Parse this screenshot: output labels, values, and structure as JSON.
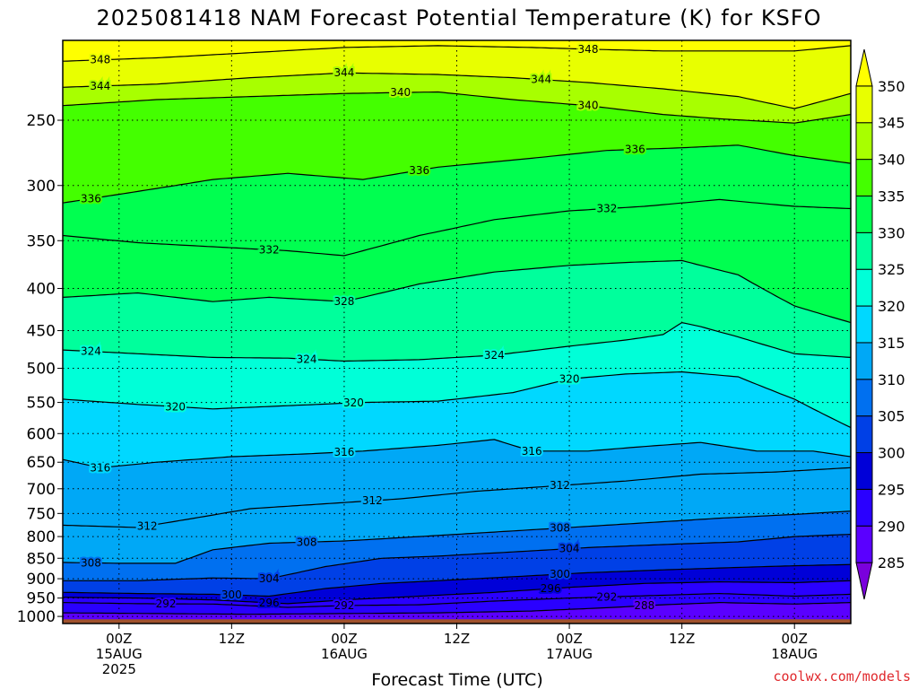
{
  "chart_data": {
    "type": "heatmap",
    "title": "2025081418 NAM Forecast Potential Temperature (K) for KSFO",
    "xlabel": "Forecast Time (UTC)",
    "ylabel": "",
    "y_scale": "log-pressure (inverted)",
    "ylim": [
      1020,
      200
    ],
    "y_ticks": [
      250,
      300,
      350,
      400,
      450,
      500,
      550,
      600,
      650,
      700,
      750,
      800,
      850,
      900,
      950,
      1000
    ],
    "x_ticks": [
      {
        "hour": 6,
        "lines": [
          "00Z",
          "15AUG",
          "2025"
        ]
      },
      {
        "hour": 18,
        "lines": [
          "12Z",
          "",
          ""
        ]
      },
      {
        "hour": 30,
        "lines": [
          "00Z",
          "16AUG",
          ""
        ]
      },
      {
        "hour": 42,
        "lines": [
          "12Z",
          "",
          ""
        ]
      },
      {
        "hour": 54,
        "lines": [
          "00Z",
          "17AUG",
          ""
        ]
      },
      {
        "hour": 66,
        "lines": [
          "12Z",
          "",
          ""
        ]
      },
      {
        "hour": 78,
        "lines": [
          "00Z",
          "18AUG",
          ""
        ]
      }
    ],
    "xlim": [
      0,
      84
    ],
    "grid": true,
    "colorbar": {
      "levels": [
        285,
        290,
        295,
        300,
        305,
        310,
        315,
        320,
        325,
        330,
        335,
        340,
        345,
        350
      ],
      "colors": [
        "#7a00dc",
        "#5a00ff",
        "#2a00ff",
        "#0000d8",
        "#0040e6",
        "#0070f0",
        "#00a8f6",
        "#00d8ff",
        "#00ffd8",
        "#00ff9c",
        "#00ff50",
        "#44ff00",
        "#a8ff00",
        "#e8ff00",
        "#ffff00"
      ],
      "position": "right"
    },
    "ground_color": "#a0522d",
    "isentropes": [
      {
        "theta": 348,
        "label_hours": [
          4,
          56
        ],
        "p": [
          [
            0,
            212
          ],
          [
            10,
            210
          ],
          [
            20,
            207
          ],
          [
            30,
            204
          ],
          [
            40,
            203
          ],
          [
            50,
            204
          ],
          [
            56,
            205
          ],
          [
            64,
            206
          ],
          [
            72,
            206
          ],
          [
            78,
            206
          ],
          [
            84,
            203
          ]
        ]
      },
      {
        "theta": 344,
        "label_hours": [
          4,
          30,
          51
        ],
        "p": [
          [
            0,
            228
          ],
          [
            10,
            226
          ],
          [
            20,
            222
          ],
          [
            30,
            219
          ],
          [
            40,
            220
          ],
          [
            48,
            222
          ],
          [
            56,
            225
          ],
          [
            64,
            229
          ],
          [
            72,
            234
          ],
          [
            78,
            242
          ],
          [
            84,
            232
          ]
        ]
      },
      {
        "theta": 340,
        "label_hours": [
          36,
          56
        ],
        "p": [
          [
            0,
            240
          ],
          [
            10,
            236
          ],
          [
            20,
            234
          ],
          [
            30,
            232
          ],
          [
            40,
            231
          ],
          [
            48,
            236
          ],
          [
            56,
            240
          ],
          [
            64,
            246
          ],
          [
            70,
            249
          ],
          [
            78,
            252
          ],
          [
            84,
            246
          ]
        ]
      },
      {
        "theta": 336,
        "label_hours": [
          3,
          38,
          61
        ],
        "p": [
          [
            0,
            315
          ],
          [
            8,
            305
          ],
          [
            16,
            295
          ],
          [
            24,
            290
          ],
          [
            32,
            295
          ],
          [
            40,
            285
          ],
          [
            50,
            278
          ],
          [
            58,
            272
          ],
          [
            66,
            270
          ],
          [
            72,
            268
          ],
          [
            78,
            276
          ],
          [
            84,
            282
          ]
        ]
      },
      {
        "theta": 332,
        "label_hours": [
          22,
          58
        ],
        "p": [
          [
            0,
            345
          ],
          [
            8,
            352
          ],
          [
            16,
            356
          ],
          [
            24,
            360
          ],
          [
            30,
            365
          ],
          [
            38,
            345
          ],
          [
            46,
            330
          ],
          [
            54,
            322
          ],
          [
            62,
            318
          ],
          [
            70,
            312
          ],
          [
            78,
            318
          ],
          [
            84,
            320
          ]
        ]
      },
      {
        "theta": 328,
        "label_hours": [
          30
        ],
        "p": [
          [
            0,
            410
          ],
          [
            8,
            405
          ],
          [
            16,
            415
          ],
          [
            22,
            410
          ],
          [
            30,
            415
          ],
          [
            38,
            395
          ],
          [
            46,
            382
          ],
          [
            54,
            375
          ],
          [
            60,
            372
          ],
          [
            66,
            370
          ],
          [
            72,
            385
          ],
          [
            78,
            420
          ],
          [
            84,
            440
          ]
        ]
      },
      {
        "theta": 324,
        "label_hours": [
          3,
          26,
          46
        ],
        "p": [
          [
            0,
            475
          ],
          [
            8,
            480
          ],
          [
            16,
            485
          ],
          [
            24,
            486
          ],
          [
            30,
            490
          ],
          [
            38,
            488
          ],
          [
            46,
            482
          ],
          [
            54,
            470
          ],
          [
            60,
            462
          ],
          [
            64,
            455
          ],
          [
            66,
            440
          ],
          [
            68,
            445
          ],
          [
            72,
            458
          ],
          [
            78,
            480
          ],
          [
            84,
            485
          ]
        ]
      },
      {
        "theta": 320,
        "label_hours": [
          12,
          31,
          54
        ],
        "p": [
          [
            0,
            545
          ],
          [
            8,
            553
          ],
          [
            16,
            560
          ],
          [
            24,
            555
          ],
          [
            32,
            550
          ],
          [
            40,
            548
          ],
          [
            48,
            535
          ],
          [
            54,
            515
          ],
          [
            60,
            508
          ],
          [
            66,
            505
          ],
          [
            72,
            512
          ],
          [
            78,
            545
          ],
          [
            84,
            590
          ]
        ]
      },
      {
        "theta": 316,
        "label_hours": [
          4,
          30,
          50
        ],
        "p": [
          [
            0,
            645
          ],
          [
            4,
            660
          ],
          [
            10,
            650
          ],
          [
            18,
            640
          ],
          [
            26,
            635
          ],
          [
            32,
            630
          ],
          [
            40,
            620
          ],
          [
            46,
            610
          ],
          [
            50,
            630
          ],
          [
            56,
            630
          ],
          [
            62,
            622
          ],
          [
            68,
            615
          ],
          [
            74,
            630
          ],
          [
            80,
            630
          ],
          [
            84,
            640
          ]
        ]
      },
      {
        "theta": 312,
        "label_hours": [
          9,
          33,
          53
        ],
        "p": [
          [
            0,
            775
          ],
          [
            8,
            780
          ],
          [
            14,
            760
          ],
          [
            20,
            740
          ],
          [
            28,
            730
          ],
          [
            36,
            720
          ],
          [
            44,
            705
          ],
          [
            52,
            695
          ],
          [
            60,
            685
          ],
          [
            68,
            672
          ],
          [
            76,
            668
          ],
          [
            84,
            660
          ]
        ]
      },
      {
        "theta": 308,
        "label_hours": [
          3,
          26,
          53
        ],
        "p": [
          [
            0,
            860
          ],
          [
            6,
            862
          ],
          [
            12,
            862
          ],
          [
            16,
            830
          ],
          [
            22,
            815
          ],
          [
            30,
            810
          ],
          [
            38,
            800
          ],
          [
            46,
            790
          ],
          [
            54,
            780
          ],
          [
            62,
            770
          ],
          [
            70,
            760
          ],
          [
            78,
            752
          ],
          [
            84,
            745
          ]
        ]
      },
      {
        "theta": 304,
        "label_hours": [
          22,
          54
        ],
        "p": [
          [
            0,
            905
          ],
          [
            8,
            905
          ],
          [
            16,
            898
          ],
          [
            22,
            900
          ],
          [
            28,
            870
          ],
          [
            34,
            850
          ],
          [
            40,
            845
          ],
          [
            48,
            835
          ],
          [
            56,
            825
          ],
          [
            64,
            818
          ],
          [
            72,
            812
          ],
          [
            78,
            800
          ],
          [
            84,
            795
          ]
        ]
      },
      {
        "theta": 300,
        "label_hours": [
          18,
          53
        ],
        "p": [
          [
            0,
            935
          ],
          [
            8,
            938
          ],
          [
            16,
            940
          ],
          [
            22,
            945
          ],
          [
            28,
            925
          ],
          [
            34,
            912
          ],
          [
            40,
            905
          ],
          [
            48,
            895
          ],
          [
            56,
            885
          ],
          [
            64,
            878
          ],
          [
            72,
            872
          ],
          [
            78,
            868
          ],
          [
            84,
            865
          ]
        ]
      },
      {
        "theta": 296,
        "label_hours": [
          22,
          52
        ],
        "p": [
          [
            0,
            948
          ],
          [
            8,
            950
          ],
          [
            16,
            955
          ],
          [
            24,
            965
          ],
          [
            30,
            955
          ],
          [
            38,
            945
          ],
          [
            46,
            935
          ],
          [
            54,
            922
          ],
          [
            62,
            912
          ],
          [
            70,
            908
          ],
          [
            78,
            910
          ],
          [
            84,
            905
          ]
        ]
      },
      {
        "theta": 292,
        "label_hours": [
          11,
          30,
          58
        ],
        "p": [
          [
            0,
            962
          ],
          [
            8,
            965
          ],
          [
            16,
            966
          ],
          [
            24,
            975
          ],
          [
            30,
            970
          ],
          [
            38,
            968
          ],
          [
            46,
            958
          ],
          [
            54,
            950
          ],
          [
            62,
            944
          ],
          [
            70,
            938
          ],
          [
            78,
            945
          ],
          [
            84,
            940
          ]
        ]
      },
      {
        "theta": 288,
        "label_hours": [
          62
        ],
        "p": [
          [
            0,
            990
          ],
          [
            10,
            992
          ],
          [
            20,
            994
          ],
          [
            30,
            992
          ],
          [
            40,
            990
          ],
          [
            50,
            985
          ],
          [
            58,
            976
          ],
          [
            64,
            968
          ],
          [
            70,
            962
          ],
          [
            78,
            966
          ],
          [
            84,
            962
          ]
        ]
      }
    ]
  },
  "credit": "coolwx.com/models"
}
